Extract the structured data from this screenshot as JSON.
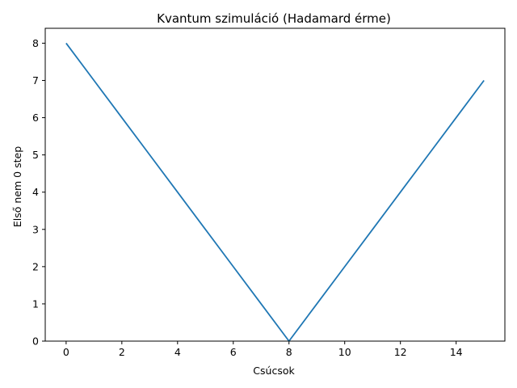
{
  "chart_data": {
    "type": "line",
    "title": "Kvantum szimuláció (Hadamard érme)",
    "xlabel": "Csúcsok",
    "ylabel": "Első nem 0 step",
    "xlim": [
      -0.75,
      15.75
    ],
    "ylim": [
      0,
      8.4
    ],
    "xticks": [
      0,
      2,
      4,
      6,
      8,
      10,
      12,
      14
    ],
    "yticks": [
      0,
      1,
      2,
      3,
      4,
      5,
      6,
      7,
      8
    ],
    "grid": false,
    "series": [
      {
        "color": "#1f77b4",
        "x": [
          0,
          1,
          2,
          3,
          4,
          5,
          6,
          7,
          8,
          9,
          10,
          11,
          12,
          13,
          14,
          15
        ],
        "y": [
          8,
          7,
          6,
          5,
          4,
          3,
          2,
          1,
          0,
          1,
          2,
          3,
          4,
          5,
          6,
          7
        ]
      }
    ]
  }
}
